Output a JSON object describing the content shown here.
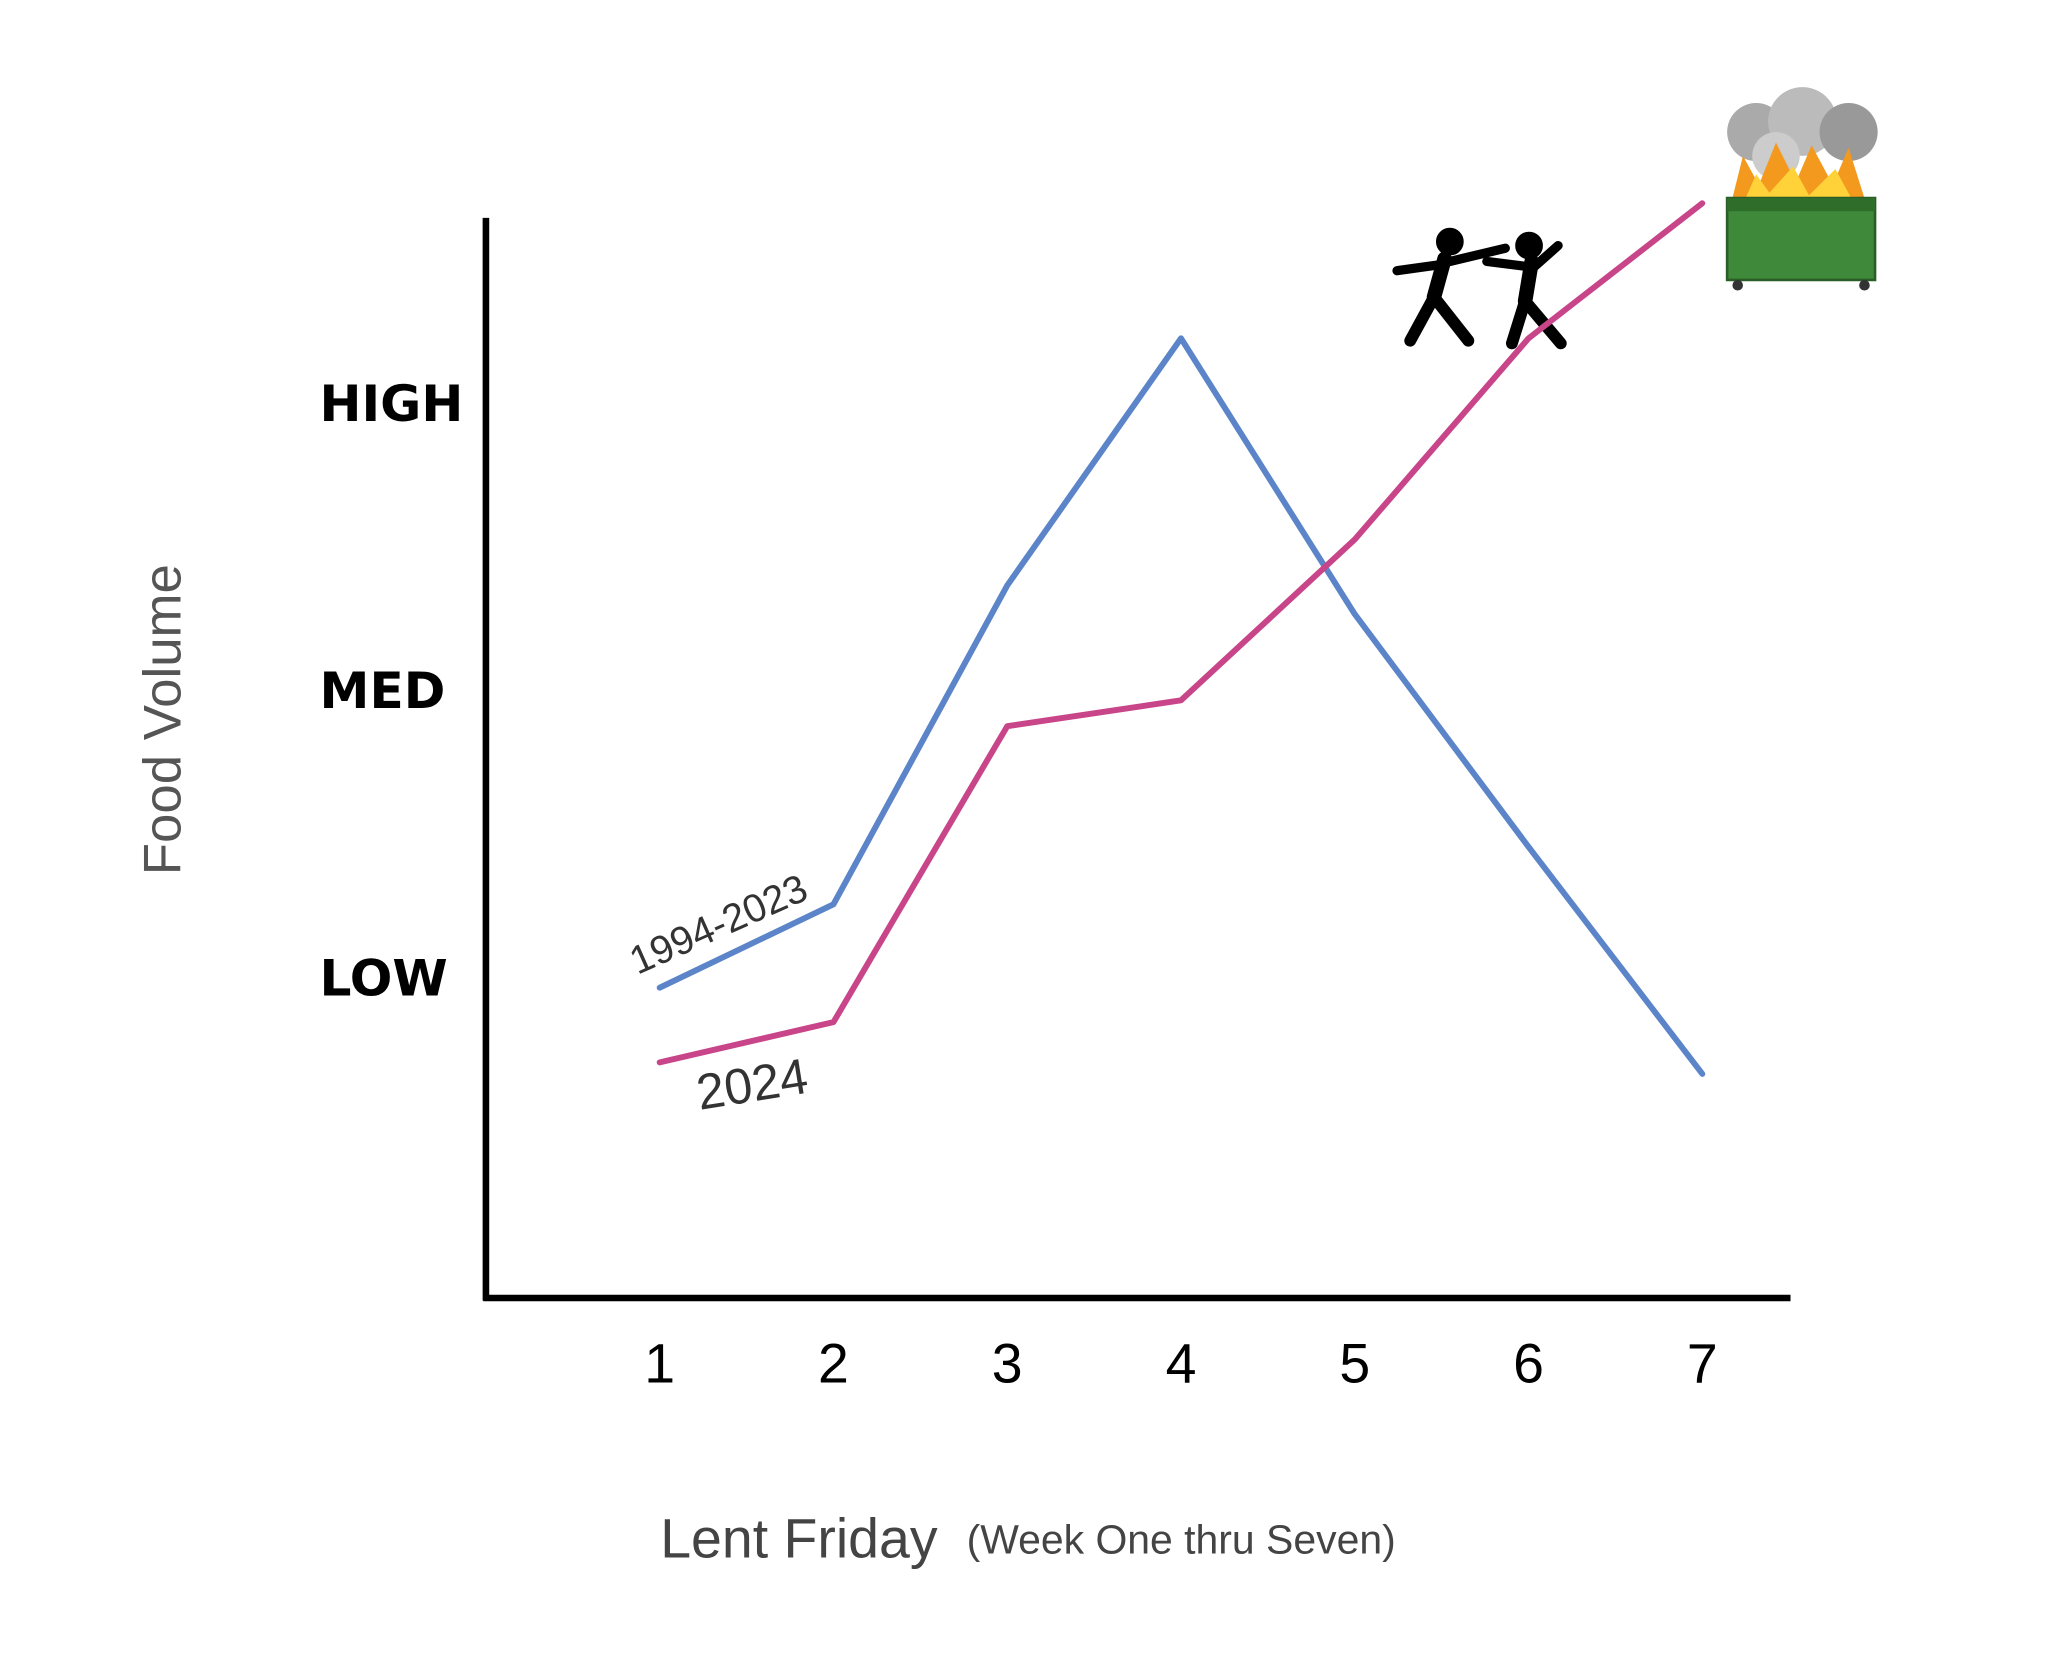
{
  "chart_data": {
    "type": "line",
    "xlabel": "Lent Friday",
    "xlabel_note": "(Week One thru Seven)",
    "ylabel": "Food Volume",
    "x": [
      1,
      2,
      3,
      4,
      5,
      6,
      7
    ],
    "xlim": [
      0,
      7.5
    ],
    "xticks": [
      1,
      2,
      3,
      4,
      5,
      6,
      7
    ],
    "ylim": [
      -0.1,
      3.65
    ],
    "yticks": [
      {
        "value": 1,
        "label": "LOW"
      },
      {
        "value": 2,
        "label": "MED"
      },
      {
        "value": 3,
        "label": "HIGH"
      }
    ],
    "grid": false,
    "series": [
      {
        "name": "1994-2023",
        "color": "#5b84c9",
        "values": [
          0.98,
          1.27,
          2.38,
          3.24,
          2.28,
          1.47,
          0.68
        ]
      },
      {
        "name": "2024",
        "color": "#c9458a",
        "values": [
          0.72,
          0.86,
          1.89,
          1.98,
          2.54,
          3.24,
          3.71
        ]
      }
    ]
  }
}
